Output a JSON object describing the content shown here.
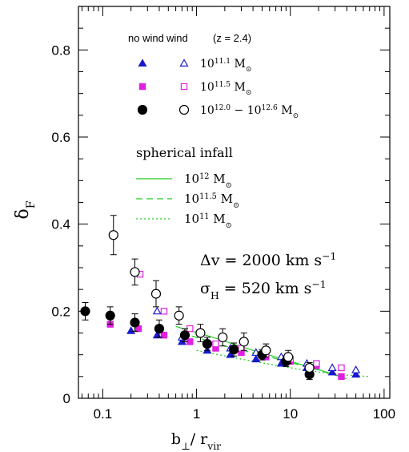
{
  "chart_data": {
    "type": "scatter",
    "xlog": true,
    "xlim": [
      0.055,
      115
    ],
    "ylim": [
      0,
      0.9
    ],
    "xticks": [
      0.1,
      1,
      10,
      100
    ],
    "yticks": [
      0,
      0.2,
      0.4,
      0.6,
      0.8
    ],
    "xminorticks": [
      0.06,
      0.07,
      0.08,
      0.09,
      0.2,
      0.3,
      0.4,
      0.5,
      0.6,
      0.7,
      0.8,
      0.9,
      2,
      3,
      4,
      5,
      6,
      7,
      8,
      9,
      20,
      30,
      40,
      50,
      60,
      70,
      80,
      90
    ],
    "yminorticks": [
      0.05,
      0.1,
      0.15,
      0.25,
      0.3,
      0.35,
      0.45,
      0.5,
      0.55,
      0.65,
      0.7,
      0.75,
      0.85
    ],
    "xlabel": [
      {
        "text": "b",
        "pos": "base"
      },
      {
        "text": "⊥",
        "pos": "sub"
      },
      {
        "text": "/ r",
        "pos": "base"
      },
      {
        "text": "vir",
        "pos": "sub"
      }
    ],
    "ylabel": [
      {
        "text": "δ",
        "pos": "base"
      },
      {
        "text": "F",
        "pos": "sub"
      }
    ],
    "legend_headers": {
      "no_wind": "no wind",
      "wind": "wind",
      "redshift": "(z = 2.4)"
    },
    "groups": [
      {
        "label": [
          {
            "text": "10",
            "pos": "base"
          },
          {
            "text": "11.1",
            "pos": "sup"
          },
          {
            "text": " M",
            "pos": "base"
          },
          {
            "text": "⊙",
            "pos": "sub"
          }
        ],
        "color": "#1a1acc",
        "marker": "triangle",
        "no_wind": {
          "x": [
            0.2,
            0.38,
            0.7,
            1.3,
            2.3,
            4.3,
            8,
            15,
            28,
            50
          ],
          "y": [
            0.155,
            0.145,
            0.13,
            0.11,
            0.1,
            0.09,
            0.08,
            0.07,
            0.06,
            0.055
          ]
        },
        "wind": {
          "x": [
            0.38,
            0.7,
            1.3,
            2.3,
            4.3,
            8,
            15,
            28,
            50
          ],
          "y": [
            0.2,
            0.14,
            0.13,
            0.115,
            0.105,
            0.095,
            0.08,
            0.07,
            0.065
          ]
        }
      },
      {
        "label": [
          {
            "text": "10",
            "pos": "base"
          },
          {
            "text": "11.5",
            "pos": "sup"
          },
          {
            "text": " M",
            "pos": "base"
          },
          {
            "text": "⊙",
            "pos": "sub"
          }
        ],
        "color": "#e020e0",
        "marker": "square",
        "no_wind": {
          "x": [
            0.12,
            0.24,
            0.45,
            0.85,
            1.6,
            3,
            5.5,
            10,
            19,
            35
          ],
          "y": [
            0.17,
            0.16,
            0.145,
            0.13,
            0.115,
            0.105,
            0.095,
            0.085,
            0.075,
            0.05
          ]
        },
        "wind": {
          "x": [
            0.25,
            0.45,
            0.85,
            1.6,
            3,
            5.5,
            10,
            19,
            35
          ],
          "y": [
            0.285,
            0.2,
            0.16,
            0.125,
            0.115,
            0.1,
            0.09,
            0.08,
            0.07
          ]
        }
      },
      {
        "label": [
          {
            "text": "10",
            "pos": "base"
          },
          {
            "text": "12.0",
            "pos": "sup"
          },
          {
            "text": " − 10",
            "pos": "base"
          },
          {
            "text": "12.6",
            "pos": "sup"
          },
          {
            "text": " M",
            "pos": "base"
          },
          {
            "text": "⊙",
            "pos": "sub"
          }
        ],
        "color": "#000000",
        "marker": "circle",
        "no_wind": {
          "x": [
            0.065,
            0.12,
            0.22,
            0.4,
            0.75,
            1.3,
            2.5,
            5,
            9,
            16
          ],
          "y": [
            0.2,
            0.19,
            0.174,
            0.16,
            0.145,
            0.125,
            0.112,
            0.1,
            0.085,
            0.055
          ],
          "err": [
            0.02,
            0.02,
            0.02,
            0.02,
            0.015,
            0.015,
            0.015,
            0.012,
            0.012,
            0.012
          ]
        },
        "wind": {
          "x": [
            0.13,
            0.22,
            0.37,
            0.65,
            1.1,
            1.9,
            3.2,
            5.5,
            9.5,
            16
          ],
          "y": [
            0.375,
            0.29,
            0.24,
            0.19,
            0.15,
            0.14,
            0.13,
            0.11,
            0.095,
            0.07
          ],
          "err": [
            0.045,
            0.03,
            0.03,
            0.02,
            0.02,
            0.02,
            0.02,
            0.015,
            0.015,
            0.012
          ]
        }
      }
    ],
    "models_title": "spherical infall",
    "models": [
      {
        "label": [
          {
            "text": "10",
            "pos": "base"
          },
          {
            "text": "12",
            "pos": "sup"
          },
          {
            "text": " M",
            "pos": "base"
          },
          {
            "text": "⊙",
            "pos": "sub"
          }
        ],
        "color": "#22cc22",
        "dash": "solid",
        "x": [
          0.6,
          1.5,
          4,
          10,
          35
        ],
        "y": [
          0.165,
          0.14,
          0.11,
          0.085,
          0.05
        ]
      },
      {
        "label": [
          {
            "text": "10",
            "pos": "base"
          },
          {
            "text": "11.5",
            "pos": "sup"
          },
          {
            "text": " M",
            "pos": "base"
          },
          {
            "text": "⊙",
            "pos": "sub"
          }
        ],
        "color": "#22cc22",
        "dash": "dashed",
        "x": [
          0.7,
          2,
          6,
          20,
          40
        ],
        "y": [
          0.15,
          0.12,
          0.095,
          0.065,
          0.045
        ]
      },
      {
        "label": [
          {
            "text": "10",
            "pos": "base"
          },
          {
            "text": "11",
            "pos": "sup"
          },
          {
            "text": " M",
            "pos": "base"
          },
          {
            "text": "⊙",
            "pos": "sub"
          }
        ],
        "color": "#22cc22",
        "dash": "dotted",
        "x": [
          1,
          3,
          10,
          30,
          70
        ],
        "y": [
          0.11,
          0.09,
          0.07,
          0.055,
          0.05
        ]
      }
    ],
    "annotations": [
      [
        {
          "text": "Δv = 2000 km s",
          "pos": "base"
        },
        {
          "text": "−1",
          "pos": "sup"
        }
      ],
      [
        {
          "text": "σ",
          "pos": "base"
        },
        {
          "text": "H",
          "pos": "sub"
        },
        {
          "text": " = 520 km s",
          "pos": "base"
        },
        {
          "text": "−1",
          "pos": "sup"
        }
      ]
    ]
  }
}
